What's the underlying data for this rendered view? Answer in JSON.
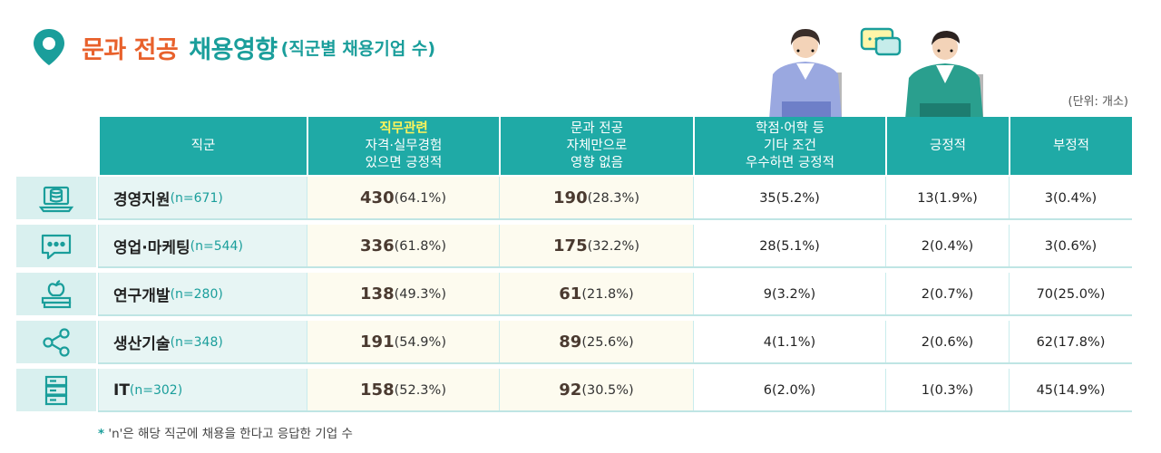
{
  "title": {
    "part1": "문과 전공",
    "part2": "채용영향",
    "sub": "(직군별 채용기업 수)"
  },
  "unit": "(단위: 개소)",
  "colors": {
    "accent": "#1faaa6",
    "orange": "#e8612c",
    "highlight": "#fff45a"
  },
  "header": {
    "col0": "직군",
    "col1": [
      "직무관련",
      "자격·실무경험",
      "있으면 긍정적"
    ],
    "col2": [
      "문과 전공",
      "자체만으로",
      "영향 없음"
    ],
    "col3": [
      "학점·어학 등",
      "기타 조건",
      "우수하면 긍정적"
    ],
    "col4": "긍정적",
    "col5": "부정적"
  },
  "chart_data": {
    "type": "table",
    "columns": [
      "직군",
      "직무관련 자격·실무경험 있으면 긍정적",
      "문과 전공 자체만으로 영향 없음",
      "학점·어학 등 기타 조건 우수하면 긍정적",
      "긍정적",
      "부정적"
    ],
    "rows": [
      {
        "name": "경영지원",
        "n": "(n=671)",
        "icon": "database-laptop-icon",
        "c1": {
          "v": "430",
          "p": "(64.1%)"
        },
        "c2": {
          "v": "190",
          "p": "(28.3%)"
        },
        "c3": "35(5.2%)",
        "c4": "13(1.9%)",
        "c5": "3(0.4%)"
      },
      {
        "name": "영업·마케팅",
        "n": "(n=544)",
        "icon": "chat-bubble-icon",
        "c1": {
          "v": "336",
          "p": "(61.8%)"
        },
        "c2": {
          "v": "175",
          "p": "(32.2%)"
        },
        "c3": "28(5.1%)",
        "c4": "2(0.4%)",
        "c5": "3(0.6%)"
      },
      {
        "name": "연구개발",
        "n": "(n=280)",
        "icon": "apple-books-icon",
        "c1": {
          "v": "138",
          "p": "(49.3%)"
        },
        "c2": {
          "v": "61",
          "p": "(21.8%)"
        },
        "c3": "9(3.2%)",
        "c4": "2(0.7%)",
        "c5": "70(25.0%)"
      },
      {
        "name": "생산기술",
        "n": "(n=348)",
        "icon": "share-nodes-icon",
        "c1": {
          "v": "191",
          "p": "(54.9%)"
        },
        "c2": {
          "v": "89",
          "p": "(25.6%)"
        },
        "c3": "4(1.1%)",
        "c4": "2(0.6%)",
        "c5": "62(17.8%)"
      },
      {
        "name": "IT",
        "n": "(n=302)",
        "icon": "server-rack-icon",
        "c1": {
          "v": "158",
          "p": "(52.3%)"
        },
        "c2": {
          "v": "92",
          "p": "(30.5%)"
        },
        "c3": "6(2.0%)",
        "c4": "1(0.3%)",
        "c5": "45(14.9%)"
      }
    ]
  },
  "footnote": {
    "star": "*",
    "text": " 'n'은 해당 직군에 채용을 한다고 응답한 기업 수"
  },
  "illustration": {
    "icon": "two-interview-people-icon",
    "bubble": "speech-bubble-icon"
  }
}
